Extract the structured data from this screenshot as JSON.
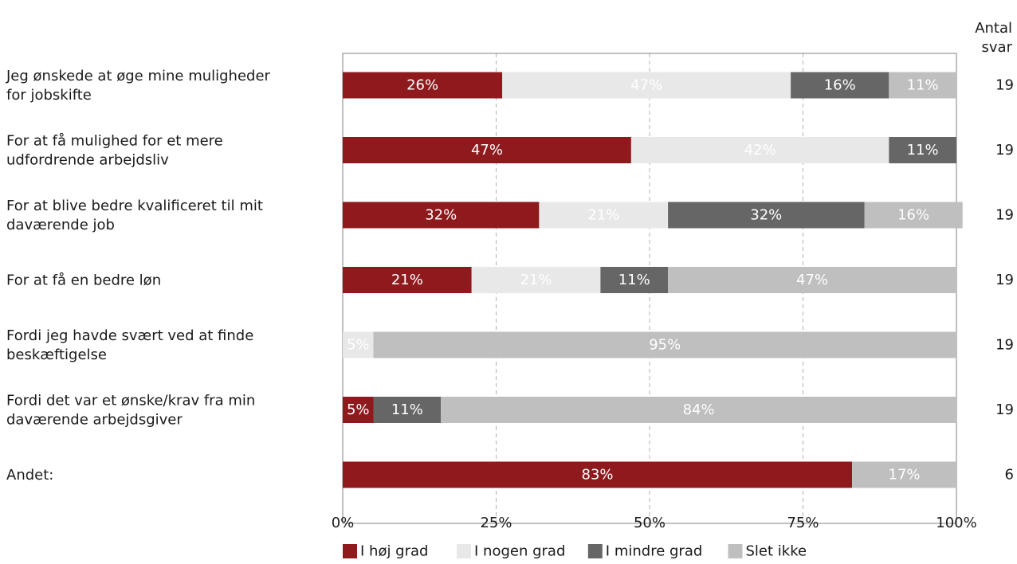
{
  "chart_data": {
    "type": "bar",
    "orientation": "horizontal",
    "stacked": true,
    "count_header": [
      "Antal",
      "svar"
    ],
    "categories": [
      [
        "Jeg ønskede at øge mine muligheder",
        "for jobskifte"
      ],
      [
        "For at få mulighed for et mere",
        "udfordrende arbejdsliv"
      ],
      [
        "For at blive bedre kvalificeret til mit",
        "daværende job"
      ],
      [
        "For at få en bedre løn"
      ],
      [
        "Fordi jeg havde svært ved at finde",
        "beskæftigelse"
      ],
      [
        "Fordi det var et ønske/krav fra min",
        "daværende arbejdsgiver"
      ],
      [
        "Andet:"
      ]
    ],
    "series": [
      {
        "name": "I høj grad",
        "color": "#8e1a1e",
        "text_color": "#ffffff",
        "values": [
          26,
          47,
          32,
          21,
          0,
          5,
          83
        ]
      },
      {
        "name": "I nogen grad",
        "color": "#e8e8e8",
        "text_color": "#ffffff",
        "values": [
          47,
          42,
          21,
          21,
          5,
          0,
          0
        ]
      },
      {
        "name": "I mindre grad",
        "color": "#666666",
        "text_color": "#ffffff",
        "values": [
          16,
          11,
          32,
          11,
          0,
          11,
          0
        ]
      },
      {
        "name": "Slet ikke",
        "color": "#bfbfbf",
        "text_color": "#ffffff",
        "values": [
          11,
          0,
          16,
          47,
          95,
          84,
          17
        ]
      }
    ],
    "counts": [
      19,
      19,
      19,
      19,
      19,
      19,
      6
    ],
    "xlim": [
      0,
      100
    ],
    "xticks": [
      0,
      25,
      50,
      75,
      100
    ],
    "xtick_labels": [
      "0%",
      "25%",
      "50%",
      "75%",
      "100%"
    ],
    "value_suffix": "%",
    "grid": "vertical dashed",
    "legend_position": "bottom"
  }
}
